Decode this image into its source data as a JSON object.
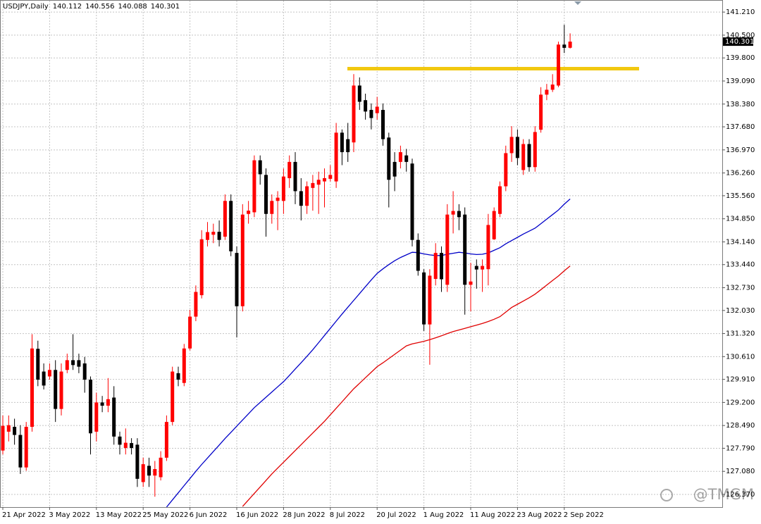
{
  "chart_data": {
    "type": "candlestick",
    "title": "USDJPY,Daily",
    "up_color": "#ff0000",
    "down_color": "#000000",
    "grid": true,
    "watermark": "@TMGM",
    "categories": [
      "21 Apr 2022",
      null,
      null,
      null,
      null,
      null,
      null,
      null,
      "3 May 2022",
      null,
      null,
      null,
      null,
      null,
      null,
      null,
      "13 May 2022",
      null,
      null,
      null,
      null,
      null,
      null,
      null,
      "25 May 2022",
      null,
      null,
      null,
      null,
      null,
      null,
      null,
      "6 Jun 2022",
      null,
      null,
      null,
      null,
      null,
      null,
      null,
      "16 Jun 2022",
      null,
      null,
      null,
      null,
      null,
      null,
      null,
      "28 Jun 2022",
      null,
      null,
      null,
      null,
      null,
      null,
      null,
      "8 Jul 2022",
      null,
      null,
      null,
      null,
      null,
      null,
      null,
      "20 Jul 2022",
      null,
      null,
      null,
      null,
      null,
      null,
      null,
      "1 Aug 2022",
      null,
      null,
      null,
      null,
      null,
      null,
      null,
      "11 Aug 2022",
      null,
      null,
      null,
      null,
      null,
      null,
      null,
      "23 Aug 2022",
      null,
      null,
      null,
      null,
      null,
      null,
      null,
      "2 Sep 2022",
      null
    ],
    "open": [
      127.72,
      128.3,
      128.45,
      128.2,
      127.2,
      128.45,
      130.85,
      130.15,
      130.0,
      130.2,
      129.0,
      130.2,
      130.5,
      130.5,
      130.4,
      129.9,
      128.3,
      129.2,
      129.1,
      129.35,
      128.15,
      127.8,
      127.95,
      127.9,
      126.75,
      127.25,
      126.95,
      126.9,
      127.5,
      128.6,
      130.1,
      129.8,
      130.86,
      131.84,
      132.5,
      134.2,
      134.36,
      134.45,
      134.3,
      135.4,
      133.8,
      132.16,
      135.0,
      135.05,
      136.65,
      136.2,
      135.0,
      135.4,
      135.4,
      136.1,
      136.6,
      135.7,
      135.25,
      135.8,
      135.9,
      136.0,
      136.08,
      136.0,
      137.5,
      137.3,
      137.2,
      138.95,
      138.5,
      138.2,
      138.1,
      138.2,
      137.35,
      136.6,
      136.6,
      136.8,
      136.55,
      134.2,
      133.2,
      131.6,
      133.0,
      133.8,
      132.82,
      134.98,
      135.09,
      134.98,
      132.82,
      133.4,
      133.29,
      133.3,
      134.22,
      135.0,
      135.85,
      136.87,
      137.37,
      136.35,
      137.15,
      136.44,
      137.59,
      138.67,
      138.82,
      138.95,
      140.21,
      140.112
    ],
    "high": [
      128.8,
      128.8,
      128.7,
      128.5,
      128.6,
      131.3,
      131.1,
      130.4,
      130.4,
      130.5,
      130.4,
      130.7,
      131.3,
      130.7,
      130.6,
      130.0,
      129.5,
      129.4,
      129.95,
      129.7,
      128.3,
      128.4,
      128.1,
      128.1,
      127.5,
      127.5,
      127.4,
      127.7,
      128.8,
      130.3,
      130.3,
      131.0,
      132.05,
      132.8,
      134.5,
      134.75,
      134.7,
      134.8,
      135.6,
      135.6,
      134.0,
      135.3,
      135.4,
      136.8,
      136.8,
      136.4,
      135.6,
      135.7,
      136.4,
      136.8,
      136.9,
      136.1,
      136.0,
      136.2,
      136.3,
      136.4,
      136.5,
      137.8,
      137.6,
      137.8,
      139.3,
      139.2,
      138.7,
      138.4,
      138.6,
      138.4,
      137.5,
      136.9,
      137.1,
      137.0,
      136.7,
      134.4,
      133.3,
      133.3,
      134.1,
      134.0,
      135.3,
      135.7,
      135.3,
      135.2,
      133.5,
      133.6,
      133.6,
      135.0,
      135.2,
      136.0,
      137.1,
      137.7,
      137.6,
      137.3,
      137.3,
      137.7,
      138.9,
      139.0,
      139.3,
      140.3,
      140.82,
      140.556
    ],
    "low": [
      127.6,
      128.0,
      127.9,
      127.0,
      127.1,
      128.3,
      129.7,
      129.6,
      129.9,
      128.6,
      128.8,
      130.1,
      130.2,
      130.1,
      129.5,
      127.6,
      128.0,
      128.9,
      128.9,
      127.9,
      127.6,
      127.6,
      127.6,
      126.6,
      126.6,
      126.6,
      126.3,
      126.8,
      127.4,
      128.5,
      129.7,
      129.7,
      130.8,
      131.7,
      132.4,
      134.0,
      134.1,
      134.0,
      134.2,
      133.7,
      131.2,
      132.0,
      134.7,
      134.9,
      135.9,
      134.3,
      134.7,
      134.5,
      135.0,
      135.8,
      135.3,
      134.8,
      135.0,
      135.1,
      135.0,
      135.2,
      136.0,
      135.8,
      136.5,
      136.6,
      136.9,
      138.2,
      137.9,
      137.6,
      137.9,
      137.1,
      135.2,
      135.7,
      136.4,
      136.3,
      134.0,
      133.1,
      131.4,
      130.36,
      132.8,
      132.6,
      132.6,
      134.4,
      134.5,
      131.9,
      132.0,
      132.7,
      132.6,
      132.8,
      134.2,
      134.9,
      135.7,
      136.6,
      136.5,
      136.2,
      136.3,
      136.3,
      137.5,
      138.5,
      138.75,
      138.9,
      139.95,
      140.088
    ],
    "close": [
      128.48,
      128.5,
      128.2,
      127.2,
      128.45,
      130.86,
      129.9,
      129.72,
      130.2,
      129.0,
      130.15,
      130.5,
      130.35,
      130.3,
      129.9,
      128.25,
      129.2,
      129.1,
      129.3,
      128.15,
      127.9,
      127.96,
      127.8,
      126.85,
      127.3,
      126.95,
      127.15,
      127.5,
      128.6,
      130.15,
      129.9,
      130.86,
      131.84,
      132.6,
      134.22,
      134.44,
      134.45,
      134.2,
      135.4,
      133.85,
      132.16,
      134.98,
      135.1,
      136.65,
      136.22,
      135.0,
      135.4,
      135.5,
      136.15,
      136.6,
      135.7,
      135.25,
      135.85,
      135.95,
      136.05,
      136.1,
      136.2,
      137.5,
      136.9,
      136.9,
      138.95,
      138.45,
      138.15,
      137.95,
      138.3,
      137.3,
      136.05,
      136.15,
      136.9,
      136.6,
      134.2,
      133.25,
      131.6,
      133.1,
      133.8,
      132.99,
      134.98,
      135.09,
      134.9,
      132.82,
      132.92,
      133.29,
      133.4,
      134.66,
      135.09,
      135.85,
      136.87,
      137.37,
      136.72,
      137.15,
      136.44,
      137.52,
      138.67,
      138.82,
      138.98,
      140.21,
      140.11,
      140.301
    ],
    "ma": [
      {
        "color": "#0000c8",
        "values": [
          null,
          null,
          null,
          null,
          null,
          null,
          null,
          null,
          null,
          null,
          null,
          null,
          null,
          null,
          null,
          null,
          null,
          null,
          null,
          null,
          null,
          null,
          null,
          null,
          null,
          null,
          null,
          null,
          125.98,
          126.2,
          126.42,
          126.64,
          126.86,
          127.08,
          127.29,
          127.49,
          127.69,
          127.89,
          128.09,
          128.28,
          128.47,
          128.66,
          128.85,
          129.04,
          129.2,
          129.36,
          129.52,
          129.68,
          129.84,
          130.03,
          130.23,
          130.42,
          130.62,
          130.82,
          131.04,
          131.26,
          131.48,
          131.7,
          131.92,
          132.13,
          132.34,
          132.55,
          132.76,
          132.97,
          133.17,
          133.31,
          133.44,
          133.56,
          133.66,
          133.74,
          133.82,
          133.81,
          133.77,
          133.74,
          133.72,
          133.72,
          133.76,
          133.79,
          133.82,
          133.8,
          133.77,
          133.75,
          133.76,
          133.8,
          133.88,
          133.96,
          134.08,
          134.18,
          134.28,
          134.38,
          134.47,
          134.56,
          134.7,
          134.84,
          134.98,
          135.12,
          135.3,
          135.46
        ]
      },
      {
        "color": "#e00000",
        "values": [
          null,
          null,
          null,
          null,
          null,
          null,
          null,
          null,
          null,
          null,
          null,
          null,
          null,
          null,
          null,
          null,
          null,
          null,
          null,
          null,
          null,
          null,
          null,
          null,
          null,
          null,
          null,
          null,
          null,
          null,
          null,
          null,
          null,
          null,
          null,
          null,
          null,
          null,
          null,
          null,
          null,
          126.0,
          126.2,
          126.4,
          126.6,
          126.8,
          127.0,
          127.18,
          127.36,
          127.54,
          127.72,
          127.9,
          128.08,
          128.26,
          128.44,
          128.62,
          128.82,
          129.02,
          129.22,
          129.42,
          129.62,
          129.79,
          129.96,
          130.13,
          130.3,
          130.42,
          130.55,
          130.68,
          130.81,
          130.94,
          131.0,
          131.04,
          131.08,
          131.13,
          131.19,
          131.25,
          131.32,
          131.38,
          131.43,
          131.48,
          131.53,
          131.58,
          131.63,
          131.69,
          131.76,
          131.84,
          131.98,
          132.12,
          132.22,
          132.32,
          132.42,
          132.53,
          132.67,
          132.81,
          132.95,
          133.09,
          133.25,
          133.4
        ]
      }
    ],
    "hline": {
      "value": 139.47,
      "color": "#f2c80f"
    },
    "ylim": [
      125.98,
      141.56
    ],
    "yticks": [
      {
        "value": 141.21,
        "label": "141.210"
      },
      {
        "value": 140.5,
        "label": "140.500"
      },
      {
        "value": 139.8,
        "label": "139.800"
      },
      {
        "value": 139.09,
        "label": "139.090"
      },
      {
        "value": 138.38,
        "label": "138.380"
      },
      {
        "value": 137.68,
        "label": "137.680"
      },
      {
        "value": 136.97,
        "label": "136.970"
      },
      {
        "value": 136.26,
        "label": "136.260"
      },
      {
        "value": 135.56,
        "label": "135.560"
      },
      {
        "value": 134.85,
        "label": "134.850"
      },
      {
        "value": 134.14,
        "label": "134.140"
      },
      {
        "value": 133.44,
        "label": "133.440"
      },
      {
        "value": 132.73,
        "label": "132.730"
      },
      {
        "value": 132.03,
        "label": "132.030"
      },
      {
        "value": 131.32,
        "label": "131.320"
      },
      {
        "value": 130.61,
        "label": "130.610"
      },
      {
        "value": 129.91,
        "label": "129.910"
      },
      {
        "value": 129.2,
        "label": "129.200"
      },
      {
        "value": 128.49,
        "label": "128.490"
      },
      {
        "value": 127.79,
        "label": "127.790"
      },
      {
        "value": 127.08,
        "label": "127.080"
      },
      {
        "value": 126.37,
        "label": "126.370"
      }
    ]
  }
}
